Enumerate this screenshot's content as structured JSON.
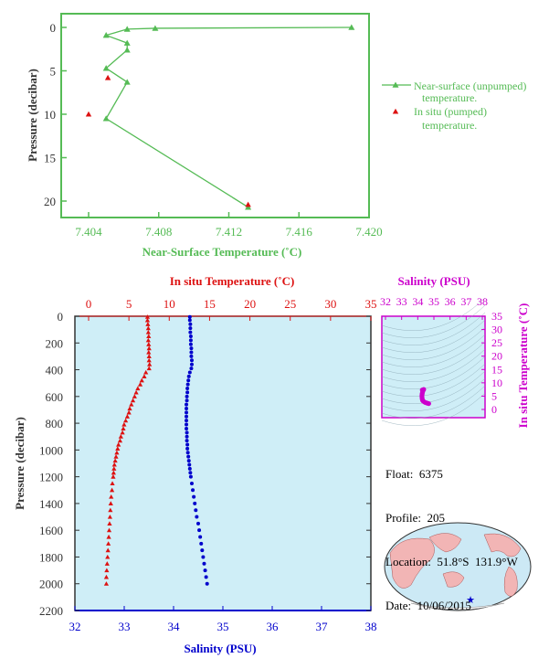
{
  "colors": {
    "near_surface": "#55bb55",
    "in_situ_temp": "#dd1111",
    "salinity": "#0000cc",
    "salinity_axis": "#cc00cc",
    "panel_bg": "#cfeef7",
    "axis_dark": "#333333"
  },
  "info": {
    "float_label": "Float:",
    "float_value": "6375",
    "profile_label": "Profile:",
    "profile_value": "205",
    "location_label": "Location:",
    "location_value": "51.8°S  131.9°W",
    "date_label": "Date:",
    "date_value": "10/06/2015"
  },
  "chart_data": [
    {
      "type": "line",
      "xlabel": "Near-Surface Temperature (˚C)",
      "ylabel": "Pressure (decibar)",
      "xlim": [
        7.404,
        7.42
      ],
      "ylim": [
        22,
        -1
      ],
      "x_ticks": [
        "7.404",
        "7.408",
        "7.412",
        "7.416",
        "7.420"
      ],
      "y_ticks": [
        "0",
        "5",
        "10",
        "15",
        "20"
      ],
      "legend_position": "right",
      "series": [
        {
          "name": "Near-surface (unpumped) temperature.",
          "marker": "triangle",
          "points": [
            [
              7.419,
              0.0
            ],
            [
              7.4078,
              0.1
            ],
            [
              7.4062,
              0.2
            ],
            [
              7.405,
              0.9
            ],
            [
              7.4062,
              1.8
            ],
            [
              7.4062,
              2.6
            ],
            [
              7.405,
              4.7
            ],
            [
              7.4062,
              6.3
            ],
            [
              7.405,
              10.5
            ],
            [
              7.4131,
              20.7
            ]
          ]
        },
        {
          "name": "In situ (pumped) temperature.",
          "marker": "triangle",
          "points": [
            [
              7.4051,
              5.8
            ],
            [
              7.404,
              10.0
            ],
            [
              7.4131,
              20.4
            ]
          ]
        }
      ]
    },
    {
      "type": "line",
      "ylabel": "Pressure (decibar)",
      "ylim": [
        2200,
        0
      ],
      "y_ticks": [
        "0",
        "200",
        "400",
        "600",
        "800",
        "1000",
        "1200",
        "1400",
        "1600",
        "1800",
        "2000",
        "2200"
      ],
      "top_axis": {
        "label": "In situ Temperature (˚C)",
        "range": [
          -2,
          35
        ],
        "ticks": [
          "0",
          "5",
          "10",
          "15",
          "20",
          "25",
          "30",
          "35"
        ]
      },
      "bottom_axis": {
        "label": "Salinity (PSU)",
        "range": [
          32,
          38
        ],
        "ticks": [
          "32",
          "33",
          "34",
          "35",
          "36",
          "37",
          "38"
        ]
      },
      "series": [
        {
          "name": "In situ Temperature",
          "marker": "triangle",
          "pressure": [
            5,
            30,
            60,
            90,
            120,
            150,
            180,
            210,
            240,
            270,
            300,
            330,
            360,
            390,
            420,
            450,
            480,
            510,
            540,
            570,
            600,
            630,
            660,
            690,
            720,
            750,
            780,
            810,
            840,
            870,
            900,
            930,
            960,
            990,
            1020,
            1050,
            1080,
            1110,
            1140,
            1170,
            1200,
            1250,
            1300,
            1350,
            1400,
            1450,
            1500,
            1550,
            1600,
            1650,
            1700,
            1750,
            1800,
            1850,
            1900,
            1950,
            2000
          ],
          "temperature": [
            7.3,
            7.3,
            7.35,
            7.4,
            7.4,
            7.45,
            7.4,
            7.45,
            7.5,
            7.45,
            7.5,
            7.5,
            7.55,
            7.5,
            7.1,
            6.9,
            6.6,
            6.4,
            6.1,
            5.9,
            5.7,
            5.5,
            5.3,
            5.1,
            5.0,
            4.8,
            4.6,
            4.4,
            4.3,
            4.2,
            4.0,
            3.9,
            3.7,
            3.6,
            3.5,
            3.4,
            3.3,
            3.2,
            3.15,
            3.1,
            3.05,
            2.95,
            2.9,
            2.8,
            2.75,
            2.7,
            2.65,
            2.6,
            2.55,
            2.5,
            2.45,
            2.4,
            2.35,
            2.3,
            2.25,
            2.2,
            2.2
          ]
        },
        {
          "name": "Salinity",
          "marker": "dot",
          "pressure": [
            5,
            30,
            60,
            90,
            120,
            150,
            180,
            210,
            240,
            270,
            300,
            330,
            360,
            390,
            420,
            450,
            480,
            510,
            540,
            570,
            600,
            630,
            660,
            690,
            720,
            750,
            780,
            810,
            840,
            870,
            900,
            930,
            960,
            990,
            1020,
            1050,
            1080,
            1110,
            1140,
            1170,
            1200,
            1250,
            1300,
            1350,
            1400,
            1450,
            1500,
            1550,
            1600,
            1650,
            1700,
            1750,
            1800,
            1850,
            1900,
            1950,
            2000
          ],
          "salinity": [
            34.33,
            34.33,
            34.34,
            34.34,
            34.34,
            34.35,
            34.35,
            34.35,
            34.36,
            34.36,
            34.36,
            34.37,
            34.37,
            34.36,
            34.33,
            34.31,
            34.3,
            34.29,
            34.28,
            34.28,
            34.27,
            34.27,
            34.26,
            34.26,
            34.26,
            34.26,
            34.26,
            34.26,
            34.26,
            34.27,
            34.27,
            34.27,
            34.28,
            34.28,
            34.29,
            34.3,
            34.31,
            34.32,
            34.33,
            34.34,
            34.35,
            34.37,
            34.39,
            34.41,
            34.43,
            34.45,
            34.47,
            34.5,
            34.52,
            34.54,
            34.56,
            34.58,
            34.6,
            34.62,
            34.64,
            34.66,
            34.68
          ]
        }
      ]
    },
    {
      "type": "scatter",
      "xlabel": "Salinity (PSU)",
      "ylabel": "In situ Temperature (˚C)",
      "xlim": [
        32,
        38
      ],
      "ylim": [
        -2,
        35
      ],
      "x_ticks": [
        "32",
        "33",
        "34",
        "35",
        "36",
        "37",
        "38"
      ],
      "y_ticks": [
        "0",
        "5",
        "10",
        "15",
        "20",
        "25",
        "30",
        "35"
      ],
      "points": [
        [
          34.28,
          7.3
        ],
        [
          34.33,
          7.4
        ],
        [
          34.37,
          7.5
        ],
        [
          34.33,
          7.1
        ],
        [
          34.3,
          6.6
        ],
        [
          34.28,
          6.1
        ],
        [
          34.27,
          5.7
        ],
        [
          34.26,
          5.3
        ],
        [
          34.26,
          4.8
        ],
        [
          34.27,
          4.3
        ],
        [
          34.28,
          3.8
        ],
        [
          34.3,
          3.4
        ],
        [
          34.34,
          3.1
        ],
        [
          34.4,
          2.85
        ],
        [
          34.47,
          2.6
        ],
        [
          34.55,
          2.45
        ],
        [
          34.62,
          2.3
        ],
        [
          34.68,
          2.2
        ]
      ]
    }
  ]
}
